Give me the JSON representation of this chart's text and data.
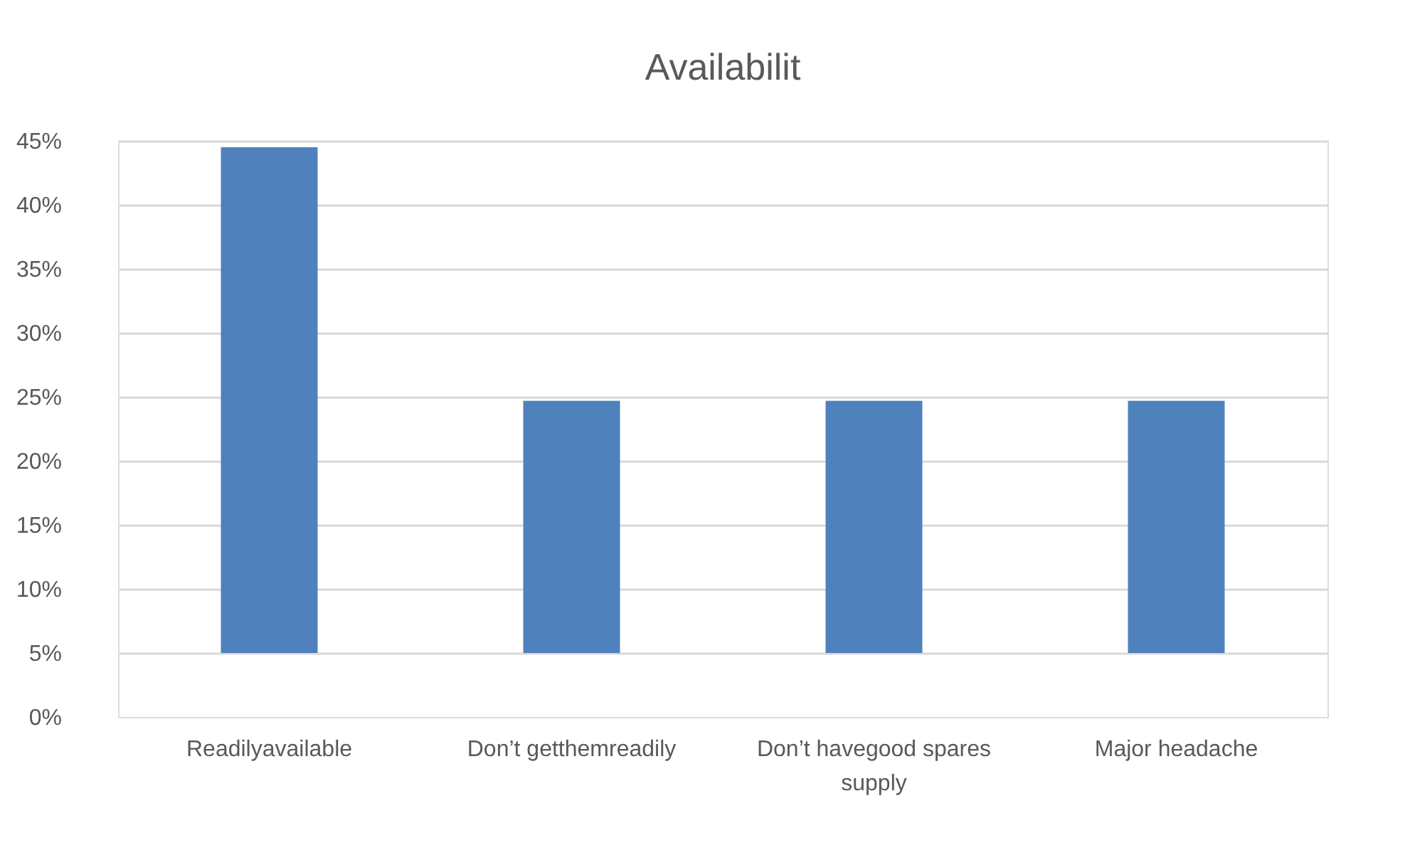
{
  "chart_data": {
    "type": "bar",
    "title": "Availabilit",
    "categories": [
      "Readilyavailable",
      "Don’t getthemreadily",
      "Don’t havegood spares supply",
      "Major headache"
    ],
    "base": [
      5,
      5,
      5,
      5
    ],
    "values": [
      39.5,
      19.7,
      19.7,
      19.7
    ],
    "color": "#4f81bd",
    "ylim": [
      0,
      45
    ],
    "yticks": [
      {
        "value": 0,
        "label": "0%"
      },
      {
        "value": 5,
        "label": "5%"
      },
      {
        "value": 10,
        "label": "10%"
      },
      {
        "value": 15,
        "label": "15%"
      },
      {
        "value": 20,
        "label": "20%"
      },
      {
        "value": 25,
        "label": "25%"
      },
      {
        "value": 30,
        "label": "30%"
      },
      {
        "value": 35,
        "label": "35%"
      },
      {
        "value": 40,
        "label": "40%"
      },
      {
        "value": 45,
        "label": "45%"
      }
    ],
    "grid": "y"
  }
}
